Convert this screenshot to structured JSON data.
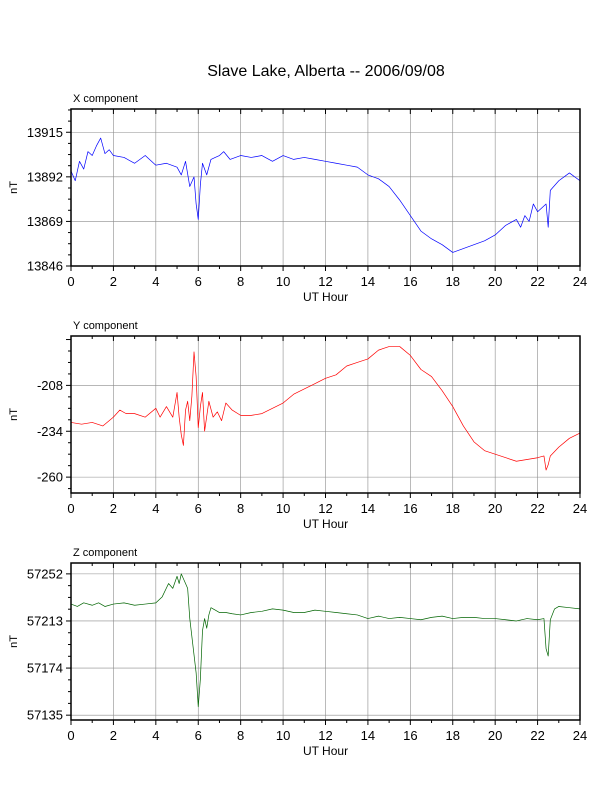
{
  "title": "Slave Lake, Alberta -- 2006/09/08",
  "chart_data": [
    {
      "type": "line",
      "label": "X component",
      "ylabel": "nT",
      "xlabel": "UT Hour",
      "color": "#0000ff",
      "xlim": [
        0,
        24
      ],
      "ylim": [
        13846,
        13927
      ],
      "xticks": [
        0,
        2,
        4,
        6,
        8,
        10,
        12,
        14,
        16,
        18,
        20,
        22,
        24
      ],
      "yticks": [
        13846,
        13869,
        13892,
        13915
      ],
      "grid": true,
      "x": [
        0,
        0.2,
        0.4,
        0.6,
        0.8,
        1,
        1.2,
        1.4,
        1.6,
        1.8,
        2,
        2.5,
        3,
        3.5,
        4,
        4.5,
        5,
        5.2,
        5.4,
        5.6,
        5.8,
        5.9,
        6,
        6.1,
        6.2,
        6.4,
        6.6,
        6.8,
        7,
        7.2,
        7.5,
        8,
        8.5,
        9,
        9.5,
        10,
        10.5,
        11,
        11.5,
        12,
        12.5,
        13,
        13.5,
        14,
        14.5,
        15,
        15.5,
        16,
        16.5,
        17,
        17.5,
        18,
        18.5,
        19,
        19.5,
        20,
        20.5,
        21,
        21.2,
        21.4,
        21.6,
        21.8,
        22,
        22.2,
        22.4,
        22.5,
        22.6,
        23,
        23.5,
        24
      ],
      "y": [
        13895,
        13890,
        13900,
        13896,
        13905,
        13903,
        13908,
        13912,
        13904,
        13906,
        13903,
        13902,
        13899,
        13903,
        13898,
        13899,
        13897,
        13893,
        13900,
        13887,
        13892,
        13878,
        13870,
        13888,
        13899,
        13893,
        13901,
        13902,
        13903,
        13905,
        13901,
        13903,
        13902,
        13903,
        13900,
        13903,
        13901,
        13902,
        13901,
        13900,
        13899,
        13898,
        13897,
        13893,
        13891,
        13887,
        13880,
        13872,
        13864,
        13860,
        13857,
        13853,
        13855,
        13857,
        13859,
        13862,
        13867,
        13870,
        13866,
        13872,
        13869,
        13878,
        13874,
        13876,
        13878,
        13866,
        13885,
        13890,
        13894,
        13890
      ]
    },
    {
      "type": "line",
      "label": "Y component",
      "ylabel": "nT",
      "xlabel": "UT Hour",
      "color": "#ff0000",
      "xlim": [
        0,
        24
      ],
      "ylim": [
        -269,
        -180
      ],
      "xticks": [
        0,
        2,
        4,
        6,
        8,
        10,
        12,
        14,
        16,
        18,
        20,
        22,
        24
      ],
      "yticks": [
        -260,
        -234,
        -208
      ],
      "grid": true,
      "x": [
        0,
        0.5,
        1,
        1.5,
        2,
        2.3,
        2.6,
        3,
        3.5,
        4,
        4.2,
        4.5,
        4.8,
        5,
        5.1,
        5.2,
        5.3,
        5.4,
        5.5,
        5.6,
        5.7,
        5.8,
        5.9,
        6,
        6.1,
        6.2,
        6.3,
        6.5,
        6.7,
        6.9,
        7.1,
        7.3,
        7.6,
        8,
        8.5,
        9,
        9.5,
        10,
        10.5,
        11,
        11.5,
        12,
        12.5,
        13,
        13.5,
        14,
        14.5,
        15,
        15.5,
        16,
        16.5,
        17,
        17.5,
        18,
        18.5,
        19,
        19.5,
        20,
        20.5,
        21,
        21.5,
        22,
        22.3,
        22.4,
        22.5,
        22.6,
        23,
        23.5,
        24
      ],
      "y": [
        -229,
        -230,
        -229,
        -231,
        -226,
        -222,
        -224,
        -224,
        -226,
        -221,
        -226,
        -220,
        -226,
        -212,
        -226,
        -236,
        -242,
        -222,
        -217,
        -228,
        -214,
        -189,
        -203,
        -232,
        -220,
        -212,
        -234,
        -217,
        -226,
        -223,
        -228,
        -218,
        -222,
        -225,
        -225,
        -224,
        -221,
        -218,
        -213,
        -210,
        -207,
        -204,
        -202,
        -197,
        -195,
        -193,
        -188,
        -186,
        -186,
        -191,
        -199,
        -203,
        -211,
        -220,
        -231,
        -240,
        -245,
        -247,
        -249,
        -251,
        -250,
        -249,
        -248,
        -256,
        -253,
        -248,
        -243,
        -238,
        -235
      ]
    },
    {
      "type": "line",
      "label": "Z component",
      "ylabel": "nT",
      "xlabel": "UT Hour",
      "color": "#006400",
      "xlim": [
        0,
        24
      ],
      "ylim": [
        57131,
        57261
      ],
      "xticks": [
        0,
        2,
        4,
        6,
        8,
        10,
        12,
        14,
        16,
        18,
        20,
        22,
        24
      ],
      "yticks": [
        57135,
        57174,
        57213,
        57252
      ],
      "grid": true,
      "x": [
        0,
        0.3,
        0.6,
        1,
        1.3,
        1.6,
        2,
        2.5,
        3,
        3.5,
        4,
        4.3,
        4.6,
        4.8,
        5,
        5.1,
        5.2,
        5.4,
        5.5,
        5.6,
        5.7,
        5.8,
        5.9,
        6,
        6.1,
        6.2,
        6.3,
        6.4,
        6.5,
        6.6,
        6.8,
        7,
        7.3,
        7.6,
        8,
        8.5,
        9,
        9.5,
        10,
        10.5,
        11,
        11.5,
        12,
        12.5,
        13,
        13.5,
        14,
        14.5,
        15,
        15.5,
        16,
        16.5,
        17,
        17.5,
        18,
        18.5,
        19,
        19.5,
        20,
        20.5,
        21,
        21.5,
        22,
        22.3,
        22.4,
        22.5,
        22.6,
        22.8,
        23,
        23.5,
        24
      ],
      "y": [
        57227,
        57225,
        57228,
        57226,
        57228,
        57225,
        57227,
        57228,
        57226,
        57227,
        57228,
        57233,
        57244,
        57240,
        57250,
        57244,
        57252,
        57244,
        57240,
        57215,
        57200,
        57185,
        57170,
        57142,
        57165,
        57205,
        57215,
        57207,
        57218,
        57224,
        57222,
        57220,
        57220,
        57219,
        57218,
        57220,
        57221,
        57223,
        57222,
        57220,
        57220,
        57222,
        57221,
        57220,
        57219,
        57218,
        57215,
        57217,
        57215,
        57216,
        57215,
        57214,
        57216,
        57217,
        57215,
        57216,
        57216,
        57215,
        57215,
        57214,
        57213,
        57215,
        57214,
        57215,
        57190,
        57184,
        57214,
        57223,
        57225,
        57224,
        57223
      ]
    }
  ]
}
